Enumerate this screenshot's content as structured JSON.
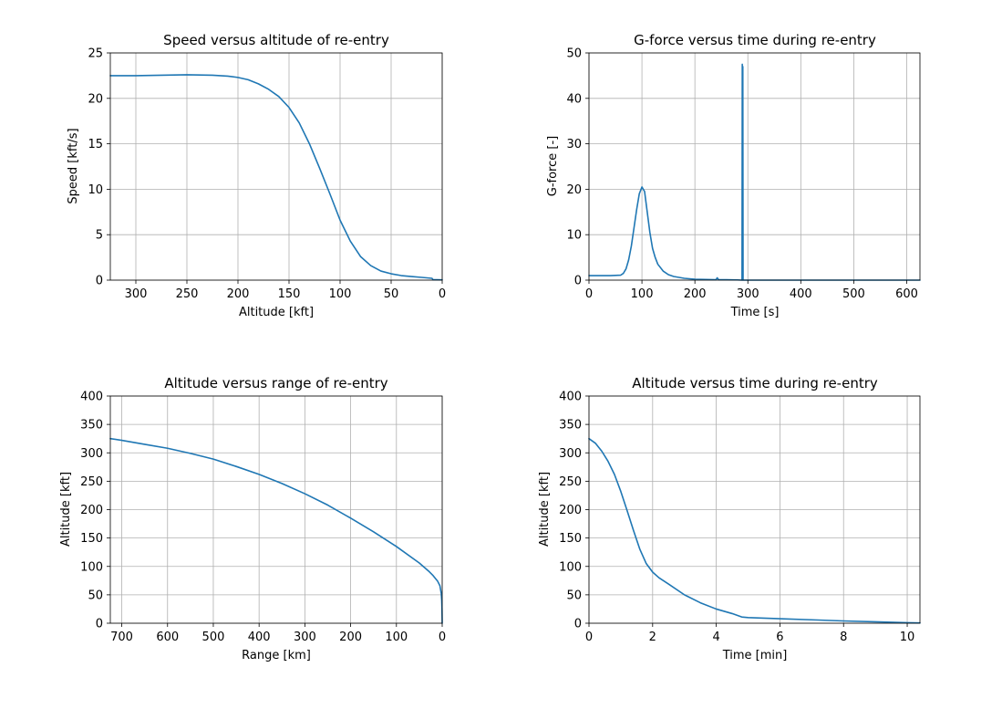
{
  "chart_data": [
    {
      "type": "line",
      "title": "Speed versus altitude of re-entry",
      "xlabel": "Altitude [kft]",
      "ylabel": "Speed [kft/s]",
      "xlim": [
        325,
        0
      ],
      "ylim": [
        0,
        25
      ],
      "x_inverted": true,
      "grid": true,
      "xticks": [
        300,
        250,
        200,
        150,
        100,
        50,
        0
      ],
      "yticks": [
        0,
        5,
        10,
        15,
        20,
        25
      ],
      "color": "#1f77b4",
      "series": [
        {
          "x": [
            325,
            300,
            275,
            250,
            225,
            210,
            200,
            190,
            180,
            170,
            160,
            150,
            140,
            130,
            120,
            110,
            100,
            90,
            80,
            70,
            60,
            50,
            40,
            30,
            20,
            10,
            9,
            5,
            0
          ],
          "y": [
            22.5,
            22.5,
            22.55,
            22.6,
            22.55,
            22.45,
            22.3,
            22.05,
            21.6,
            21.0,
            20.2,
            19.0,
            17.3,
            15.0,
            12.3,
            9.5,
            6.6,
            4.3,
            2.6,
            1.6,
            1.0,
            0.7,
            0.5,
            0.4,
            0.3,
            0.2,
            0.05,
            0.04,
            0.03
          ]
        }
      ]
    },
    {
      "type": "line",
      "title": "G-force versus time during re-entry",
      "xlabel": "Time [s]",
      "ylabel": "G-force [-]",
      "xlim": [
        0,
        625
      ],
      "ylim": [
        0,
        50
      ],
      "grid": true,
      "xticks": [
        0,
        100,
        200,
        300,
        400,
        500,
        600
      ],
      "yticks": [
        0,
        10,
        20,
        30,
        40,
        50
      ],
      "color": "#1f77b4",
      "series": [
        {
          "x": [
            0,
            20,
            40,
            60,
            65,
            70,
            75,
            80,
            85,
            90,
            95,
            100,
            105,
            110,
            115,
            120,
            125,
            130,
            140,
            150,
            160,
            180,
            200,
            240,
            241,
            242,
            243,
            244,
            245,
            246,
            247,
            248,
            249,
            250,
            260,
            280,
            289,
            289.5,
            290,
            290.5,
            291,
            300,
            400,
            500,
            600,
            625
          ],
          "y": [
            1.0,
            1.0,
            1.0,
            1.1,
            1.5,
            2.5,
            4.5,
            7.5,
            11.5,
            15.5,
            19.0,
            20.5,
            19.5,
            15.0,
            10.5,
            7.0,
            5.0,
            3.5,
            2.0,
            1.2,
            0.8,
            0.4,
            0.2,
            0.1,
            0.3,
            0.5,
            0.4,
            0.2,
            0.1,
            0.1,
            0.1,
            0.1,
            0.1,
            0.1,
            0.1,
            0.05,
            0.0,
            47.5,
            0.0,
            47.0,
            0.0,
            0.0,
            0.0,
            0.0,
            0.0,
            0.0
          ]
        }
      ]
    },
    {
      "type": "line",
      "title": "Altitude versus range of re-entry",
      "xlabel": "Range [km]",
      "ylabel": "Altitude [kft]",
      "xlim": [
        725,
        0
      ],
      "ylim": [
        0,
        400
      ],
      "x_inverted": true,
      "grid": true,
      "xticks": [
        700,
        600,
        500,
        400,
        300,
        200,
        100,
        0
      ],
      "yticks": [
        0,
        50,
        100,
        150,
        200,
        250,
        300,
        350,
        400
      ],
      "color": "#1f77b4",
      "series": [
        {
          "x": [
            725,
            700,
            650,
            600,
            550,
            500,
            450,
            400,
            350,
            300,
            250,
            200,
            150,
            100,
            50,
            30,
            20,
            10,
            5,
            2,
            1,
            0.5,
            0
          ],
          "y": [
            325,
            322,
            315,
            308,
            299,
            289,
            276,
            262,
            246,
            228,
            208,
            185,
            161,
            135,
            106,
            92,
            84,
            74,
            66,
            52,
            40,
            25,
            0
          ]
        }
      ]
    },
    {
      "type": "line",
      "title": "Altitude versus time during re-entry",
      "xlabel": "Time [min]",
      "ylabel": "Altitude [kft]",
      "xlim": [
        0,
        10.4
      ],
      "ylim": [
        0,
        400
      ],
      "grid": true,
      "xticks": [
        0,
        2,
        4,
        6,
        8,
        10
      ],
      "yticks": [
        0,
        50,
        100,
        150,
        200,
        250,
        300,
        350,
        400
      ],
      "color": "#1f77b4",
      "series": [
        {
          "x": [
            0,
            0.2,
            0.4,
            0.6,
            0.8,
            1.0,
            1.2,
            1.4,
            1.6,
            1.8,
            2.0,
            2.2,
            2.5,
            3.0,
            3.5,
            4.0,
            4.5,
            4.8,
            5.0,
            6.0,
            7.0,
            8.0,
            9.0,
            10.0,
            10.4
          ],
          "y": [
            325,
            317,
            303,
            285,
            262,
            232,
            198,
            163,
            130,
            105,
            90,
            80,
            69,
            50,
            36,
            25,
            17,
            11,
            10,
            8,
            6,
            4,
            2.5,
            1.0,
            0.5
          ]
        }
      ]
    }
  ]
}
